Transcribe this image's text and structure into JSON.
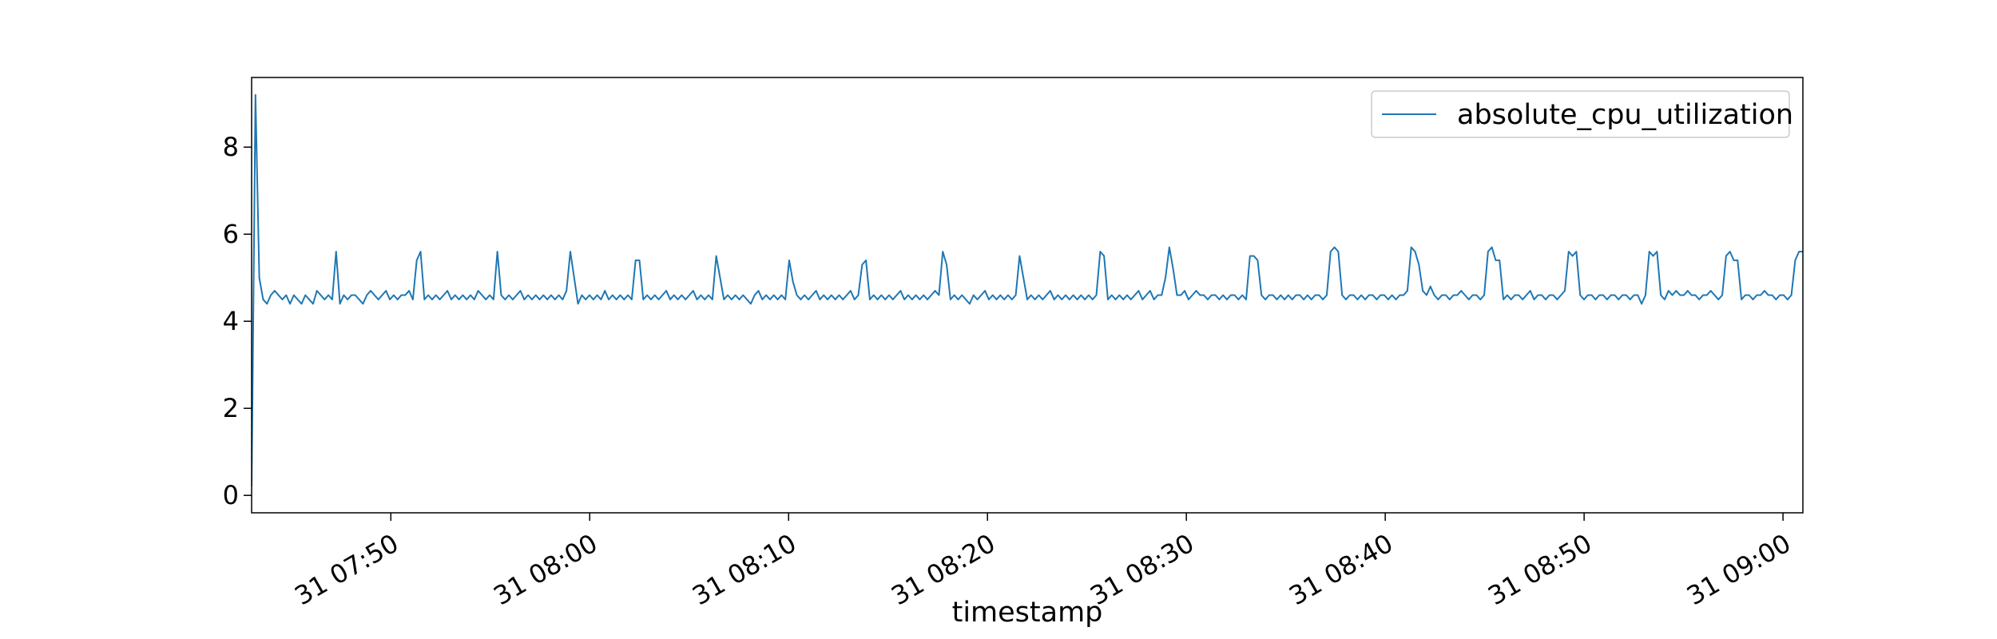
{
  "chart_data": {
    "type": "line",
    "title": "",
    "xlabel": "timestamp",
    "ylabel": "",
    "x_range": [
      "31 07:43",
      "31 09:01"
    ],
    "ylim": [
      -0.4,
      9.6
    ],
    "y_ticks": [
      0,
      2,
      4,
      6,
      8
    ],
    "x_ticks": [
      {
        "label": "31 07:50",
        "time": "07:50"
      },
      {
        "label": "31 08:00",
        "time": "08:00"
      },
      {
        "label": "31 08:10",
        "time": "08:10"
      },
      {
        "label": "31 08:20",
        "time": "08:20"
      },
      {
        "label": "31 08:30",
        "time": "08:30"
      },
      {
        "label": "31 08:40",
        "time": "08:40"
      },
      {
        "label": "31 08:50",
        "time": "08:50"
      },
      {
        "label": "31 09:00",
        "time": "09:00"
      }
    ],
    "grid": false,
    "legend": {
      "position": "top-right"
    },
    "color": "#1f77b4",
    "series": [
      {
        "name": "absolute_cpu_utilization",
        "interval_seconds": 10,
        "start_time": "07:43",
        "end_time": "09:01",
        "values": [
          0.2,
          9.2,
          5.0,
          4.5,
          4.4,
          4.6,
          4.7,
          4.6,
          4.5,
          4.6,
          4.4,
          4.6,
          4.5,
          4.4,
          4.6,
          4.5,
          4.4,
          4.7,
          4.6,
          4.5,
          4.6,
          4.5,
          5.6,
          4.4,
          4.6,
          4.5,
          4.6,
          4.6,
          4.5,
          4.4,
          4.6,
          4.7,
          4.6,
          4.5,
          4.6,
          4.7,
          4.5,
          4.6,
          4.5,
          4.6,
          4.6,
          4.7,
          4.5,
          5.4,
          5.6,
          4.5,
          4.6,
          4.5,
          4.6,
          4.5,
          4.6,
          4.7,
          4.5,
          4.6,
          4.5,
          4.6,
          4.5,
          4.6,
          4.5,
          4.7,
          4.6,
          4.5,
          4.6,
          4.5,
          5.6,
          4.6,
          4.5,
          4.6,
          4.5,
          4.6,
          4.7,
          4.5,
          4.6,
          4.5,
          4.6,
          4.5,
          4.6,
          4.5,
          4.6,
          4.5,
          4.6,
          4.5,
          4.7,
          5.6,
          5.0,
          4.4,
          4.6,
          4.5,
          4.6,
          4.5,
          4.6,
          4.5,
          4.7,
          4.5,
          4.6,
          4.5,
          4.6,
          4.5,
          4.6,
          4.5,
          5.4,
          5.4,
          4.5,
          4.6,
          4.5,
          4.6,
          4.5,
          4.6,
          4.7,
          4.5,
          4.6,
          4.5,
          4.6,
          4.5,
          4.6,
          4.7,
          4.5,
          4.6,
          4.5,
          4.6,
          4.5,
          5.5,
          5.0,
          4.5,
          4.6,
          4.5,
          4.6,
          4.5,
          4.6,
          4.5,
          4.4,
          4.6,
          4.7,
          4.5,
          4.6,
          4.5,
          4.6,
          4.5,
          4.6,
          4.5,
          5.4,
          4.9,
          4.6,
          4.5,
          4.6,
          4.5,
          4.6,
          4.7,
          4.5,
          4.6,
          4.5,
          4.6,
          4.5,
          4.6,
          4.5,
          4.6,
          4.7,
          4.5,
          4.6,
          5.3,
          5.4,
          4.5,
          4.6,
          4.5,
          4.6,
          4.5,
          4.6,
          4.5,
          4.6,
          4.7,
          4.5,
          4.6,
          4.5,
          4.6,
          4.5,
          4.6,
          4.5,
          4.6,
          4.7,
          4.6,
          5.6,
          5.3,
          4.5,
          4.6,
          4.5,
          4.6,
          4.5,
          4.4,
          4.6,
          4.5,
          4.6,
          4.7,
          4.5,
          4.6,
          4.5,
          4.6,
          4.5,
          4.6,
          4.5,
          4.6,
          5.5,
          5.0,
          4.5,
          4.6,
          4.5,
          4.6,
          4.5,
          4.6,
          4.7,
          4.5,
          4.6,
          4.5,
          4.6,
          4.5,
          4.6,
          4.5,
          4.6,
          4.5,
          4.6,
          4.5,
          4.6,
          5.6,
          5.5,
          4.5,
          4.6,
          4.5,
          4.6,
          4.5,
          4.6,
          4.5,
          4.6,
          4.7,
          4.5,
          4.6,
          4.7,
          4.5,
          4.6,
          4.6,
          5.0,
          5.7,
          5.2,
          4.6,
          4.6,
          4.7,
          4.5,
          4.6,
          4.7,
          4.6,
          4.6,
          4.5,
          4.6,
          4.6,
          4.5,
          4.6,
          4.5,
          4.6,
          4.6,
          4.5,
          4.6,
          4.5,
          5.5,
          5.5,
          5.4,
          4.6,
          4.5,
          4.6,
          4.6,
          4.5,
          4.6,
          4.5,
          4.6,
          4.5,
          4.6,
          4.6,
          4.5,
          4.6,
          4.5,
          4.6,
          4.6,
          4.5,
          4.6,
          5.6,
          5.7,
          5.6,
          4.6,
          4.5,
          4.6,
          4.6,
          4.5,
          4.6,
          4.5,
          4.6,
          4.6,
          4.5,
          4.6,
          4.6,
          4.5,
          4.6,
          4.5,
          4.6,
          4.6,
          4.7,
          5.7,
          5.6,
          5.3,
          4.7,
          4.6,
          4.8,
          4.6,
          4.5,
          4.6,
          4.6,
          4.5,
          4.6,
          4.6,
          4.7,
          4.6,
          4.5,
          4.6,
          4.6,
          4.5,
          4.6,
          5.6,
          5.7,
          5.4,
          5.4,
          4.5,
          4.6,
          4.5,
          4.6,
          4.6,
          4.5,
          4.6,
          4.7,
          4.5,
          4.6,
          4.6,
          4.5,
          4.6,
          4.6,
          4.5,
          4.6,
          4.7,
          5.6,
          5.5,
          5.6,
          4.6,
          4.5,
          4.6,
          4.6,
          4.5,
          4.6,
          4.6,
          4.5,
          4.6,
          4.6,
          4.5,
          4.6,
          4.6,
          4.5,
          4.6,
          4.6,
          4.4,
          4.6,
          5.6,
          5.5,
          5.6,
          4.6,
          4.5,
          4.7,
          4.6,
          4.7,
          4.6,
          4.6,
          4.7,
          4.6,
          4.6,
          4.5,
          4.6,
          4.6,
          4.7,
          4.6,
          4.5,
          4.6,
          5.5,
          5.6,
          5.4,
          5.4,
          4.5,
          4.6,
          4.6,
          4.5,
          4.6,
          4.6,
          4.7,
          4.6,
          4.6,
          4.5,
          4.6,
          4.6,
          4.5,
          4.6,
          5.4,
          5.6,
          5.6
        ]
      }
    ]
  }
}
